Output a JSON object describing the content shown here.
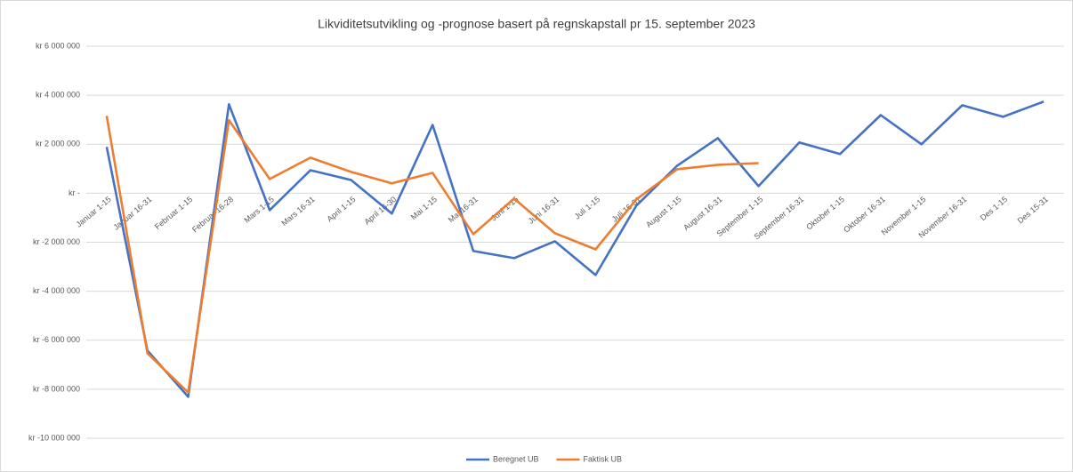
{
  "chart_data": {
    "type": "line",
    "title": "Likviditetsutvikling og -prognose basert på regnskapstall pr 15. september 2023",
    "categories": [
      "Januar 1-15",
      "Januar 16-31",
      "Februar 1-15",
      "Februar 16-28",
      "Mars 1-15",
      "Mars 16-31",
      "April 1-15",
      "April 16-30",
      "Mai 1-15",
      "Mai 16-31",
      "Juni 1-15",
      "Juni 16-31",
      "Juli 1-15",
      "Juli 16-31",
      "August 1-15",
      "August 16-31",
      "September 1-15",
      "September 16-31",
      "Oktober 1-15",
      "Oktober 16-31",
      "November 1-15",
      "November 16-31",
      "Des 1-15",
      "Des 15-31"
    ],
    "series": [
      {
        "name": "Beregnet UB",
        "color": "#4472c4",
        "values": [
          1890000,
          -6420000,
          -8310000,
          3630000,
          -690000,
          940000,
          540000,
          -830000,
          2790000,
          -2360000,
          -2650000,
          -1960000,
          -3340000,
          -510000,
          1120000,
          2250000,
          290000,
          2070000,
          1600000,
          3190000,
          2000000,
          3590000,
          3120000,
          3740000
        ]
      },
      {
        "name": "Faktisk UB",
        "color": "#ed7d31",
        "values": [
          3160000,
          -6530000,
          -8130000,
          2980000,
          580000,
          1450000,
          870000,
          400000,
          830000,
          -1670000,
          -220000,
          -1630000,
          -2290000,
          -250000,
          980000,
          1160000,
          1230000,
          null,
          null,
          null,
          null,
          null,
          null,
          null
        ]
      }
    ],
    "ylim": [
      -10000000,
      6000000
    ],
    "yticks": [
      {
        "value": -10000000,
        "label": "kr -10 000 000"
      },
      {
        "value": -8000000,
        "label": "kr -8 000 000"
      },
      {
        "value": -6000000,
        "label": "kr -6 000 000"
      },
      {
        "value": -4000000,
        "label": "kr -4 000 000"
      },
      {
        "value": -2000000,
        "label": "kr -2 000 000"
      },
      {
        "value": 0,
        "label": "kr -"
      },
      {
        "value": 2000000,
        "label": "kr 2 000 000"
      },
      {
        "value": 4000000,
        "label": "kr 4 000 000"
      },
      {
        "value": 6000000,
        "label": "kr 6 000 000"
      }
    ],
    "grid": true,
    "legend": "bottom"
  }
}
